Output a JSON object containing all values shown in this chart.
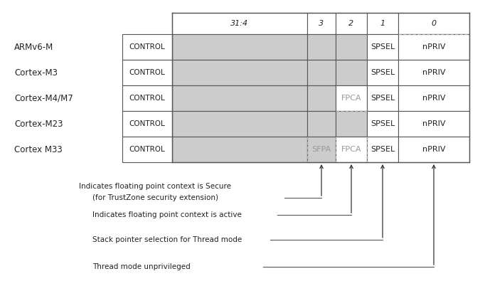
{
  "processors": [
    "ARMv6-M",
    "Cortex-M3",
    "Cortex-M4/M7",
    "Cortex-M23",
    "Cortex M33"
  ],
  "col_headers": [
    "31:4",
    "3",
    "2",
    "1",
    "0"
  ],
  "bg_color": "#ffffff",
  "gray_color": "#cccccc",
  "text_color_dark": "#222222",
  "text_color_gray": "#999999",
  "cell_data": [
    [
      "",
      "",
      "",
      "SPSEL",
      "nPRIV"
    ],
    [
      "",
      "",
      "",
      "SPSEL",
      "nPRIV"
    ],
    [
      "",
      "",
      "FPCA",
      "SPSEL",
      "nPRIV"
    ],
    [
      "",
      "",
      "",
      "SPSEL",
      "nPRIV"
    ],
    [
      "",
      "SFPA",
      "FPCA",
      "SPSEL",
      "nPRIV"
    ]
  ],
  "annotation_texts": [
    "Indicates floating point context is Secure\n(for TrustZone security extension)",
    "Indicates floating point context is active",
    "Stack pointer selection for Thread mode",
    "Thread mode unprivileged"
  ],
  "annotation_col_indices": [
    1,
    2,
    3,
    4
  ]
}
